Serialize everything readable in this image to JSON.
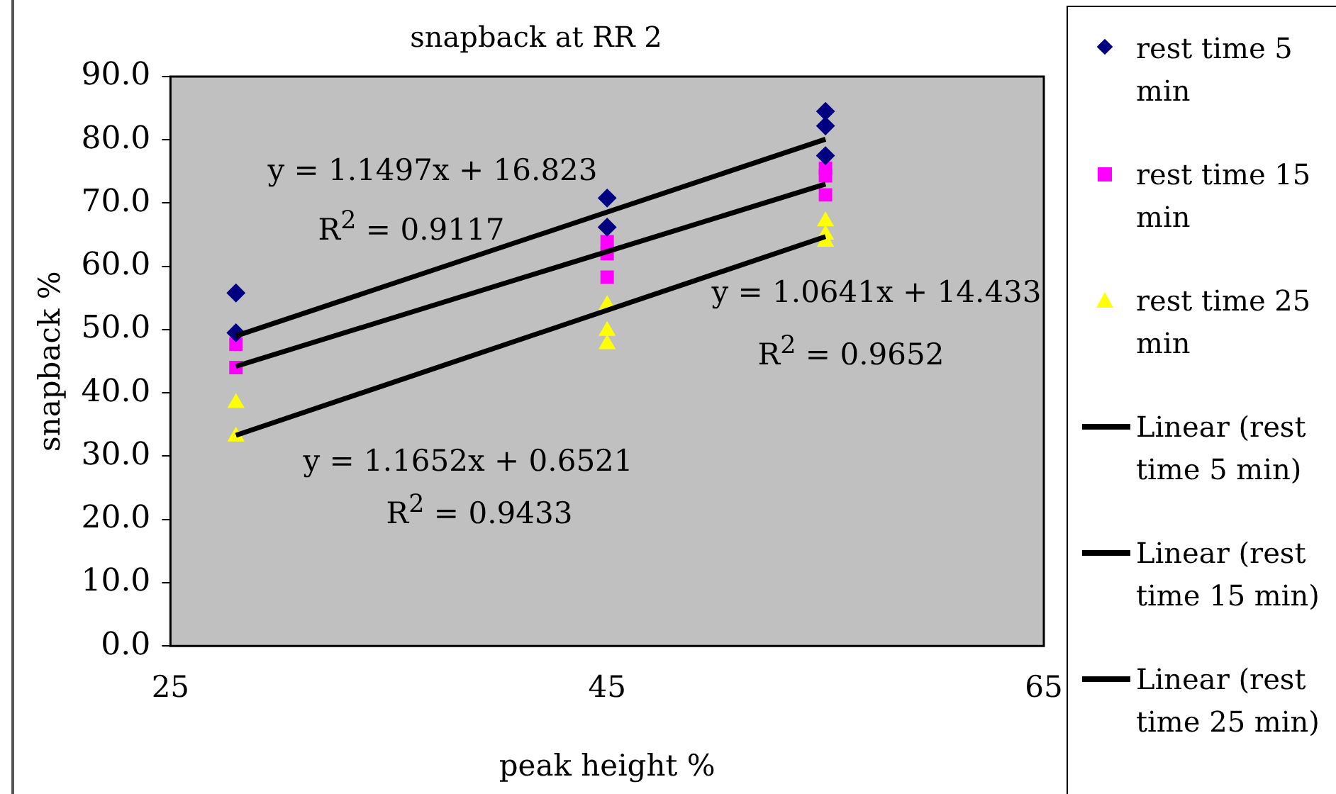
{
  "chart_data": {
    "type": "scatter",
    "title": "snapback at RR 2",
    "xlabel": "peak height %",
    "ylabel": "snapback %",
    "xlim": [
      25,
      65
    ],
    "xticks": [
      25,
      45,
      65
    ],
    "ylim": [
      0,
      90
    ],
    "yticks": [
      {
        "value": 0,
        "label": "0.0"
      },
      {
        "value": 10,
        "label": "10.0"
      },
      {
        "value": 20,
        "label": "20.0"
      },
      {
        "value": 30,
        "label": "30.0"
      },
      {
        "value": 40,
        "label": "40.0"
      },
      {
        "value": 50,
        "label": "50.0"
      },
      {
        "value": 60,
        "label": "60.0"
      },
      {
        "value": 70,
        "label": "70.0"
      },
      {
        "value": 80,
        "label": "80.0"
      },
      {
        "value": 90,
        "label": "90.0"
      }
    ],
    "grid": false,
    "legend": "right",
    "series": [
      {
        "name": "rest time 5 min",
        "marker": "diamond",
        "color": "#000080",
        "x": [
          28,
          28,
          45,
          45,
          55,
          55,
          55
        ],
        "values": [
          55.8,
          49.5,
          70.8,
          66.2,
          84.5,
          82.2,
          77.5
        ]
      },
      {
        "name": "rest time 15 min",
        "marker": "square",
        "color": "#ff00ff",
        "x": [
          28,
          28,
          45,
          45,
          45,
          55,
          55,
          55
        ],
        "values": [
          47.7,
          44.0,
          63.9,
          62.0,
          58.3,
          75.5,
          74.3,
          71.3
        ]
      },
      {
        "name": "rest time 25 min",
        "marker": "triangle",
        "color": "#ffff00",
        "x": [
          28,
          28,
          45,
          45,
          45,
          55,
          55,
          55
        ],
        "values": [
          38.4,
          33.1,
          53.9,
          49.8,
          47.7,
          67.1,
          65.0,
          63.9
        ]
      },
      {
        "name": "Linear (rest time 5 min)",
        "type": "line",
        "marker": "none",
        "color": "#000000",
        "x": [
          28,
          55
        ],
        "values": [
          49.0,
          80.1
        ]
      },
      {
        "name": "Linear (rest time 15 min)",
        "type": "line",
        "marker": "none",
        "color": "#000000",
        "x": [
          28,
          55
        ],
        "values": [
          44.2,
          73.0
        ]
      },
      {
        "name": "Linear (rest time 25 min)",
        "type": "line",
        "marker": "none",
        "color": "#000000",
        "x": [
          28,
          55
        ],
        "values": [
          33.3,
          64.7
        ]
      }
    ],
    "annotations": [
      "y = 1.1497x + 16.823",
      "R$^{2}$ = 0.9117",
      "y = 1.0641x + 14.433",
      "R$^{2}$ = 0.9652",
      "y = 1.1652x + 0.6521",
      "R$^{2}$ = 0.9433"
    ]
  }
}
